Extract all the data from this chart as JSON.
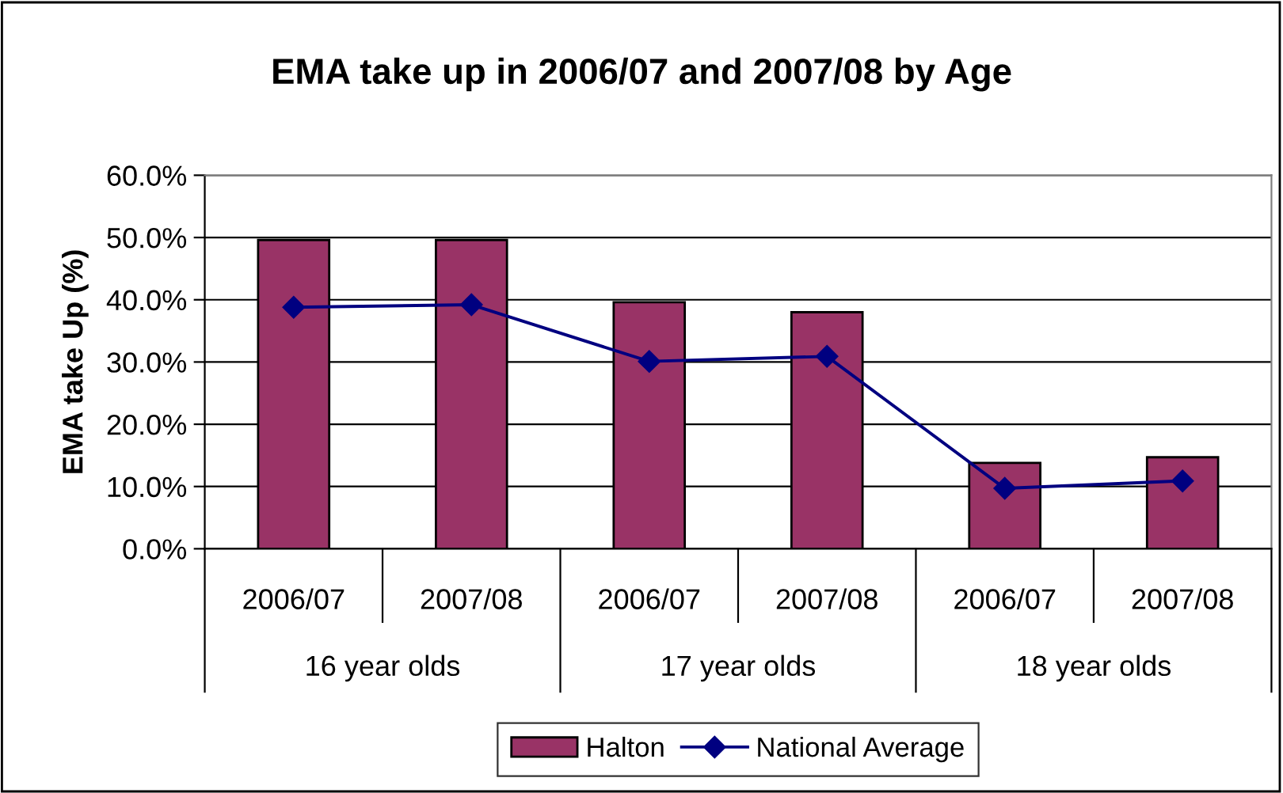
{
  "chart_data": {
    "type": "bar",
    "title": "EMA take up in 2006/07 and 2007/08 by Age",
    "ylabel": "EMA take Up (%)",
    "categories": [
      "2006/07",
      "2007/08",
      "2006/07",
      "2007/08",
      "2006/07",
      "2007/08"
    ],
    "annotations": [
      "16 year olds",
      "17 year olds",
      "18 year olds"
    ],
    "series": [
      {
        "name": "Halton",
        "color": "#993366",
        "values": [
          49.6,
          49.6,
          39.6,
          38.0,
          13.8,
          14.7
        ]
      },
      {
        "name": "National Average",
        "type": "line",
        "color": "#000080",
        "values": [
          38.8,
          39.2,
          30.1,
          30.9,
          9.7,
          10.9
        ]
      }
    ],
    "ylim": [
      0,
      60
    ],
    "yticks": [
      {
        "value": 0,
        "label": "0.0%"
      },
      {
        "value": 10,
        "label": "10.0%"
      },
      {
        "value": 20,
        "label": "20.0%"
      },
      {
        "value": 30,
        "label": "30.0%"
      },
      {
        "value": 40,
        "label": "40.0%"
      },
      {
        "value": 50,
        "label": "50.0%"
      },
      {
        "value": 60,
        "label": "60.0%"
      }
    ],
    "grid": "y",
    "legend": "bottom",
    "marker": "diamond"
  }
}
